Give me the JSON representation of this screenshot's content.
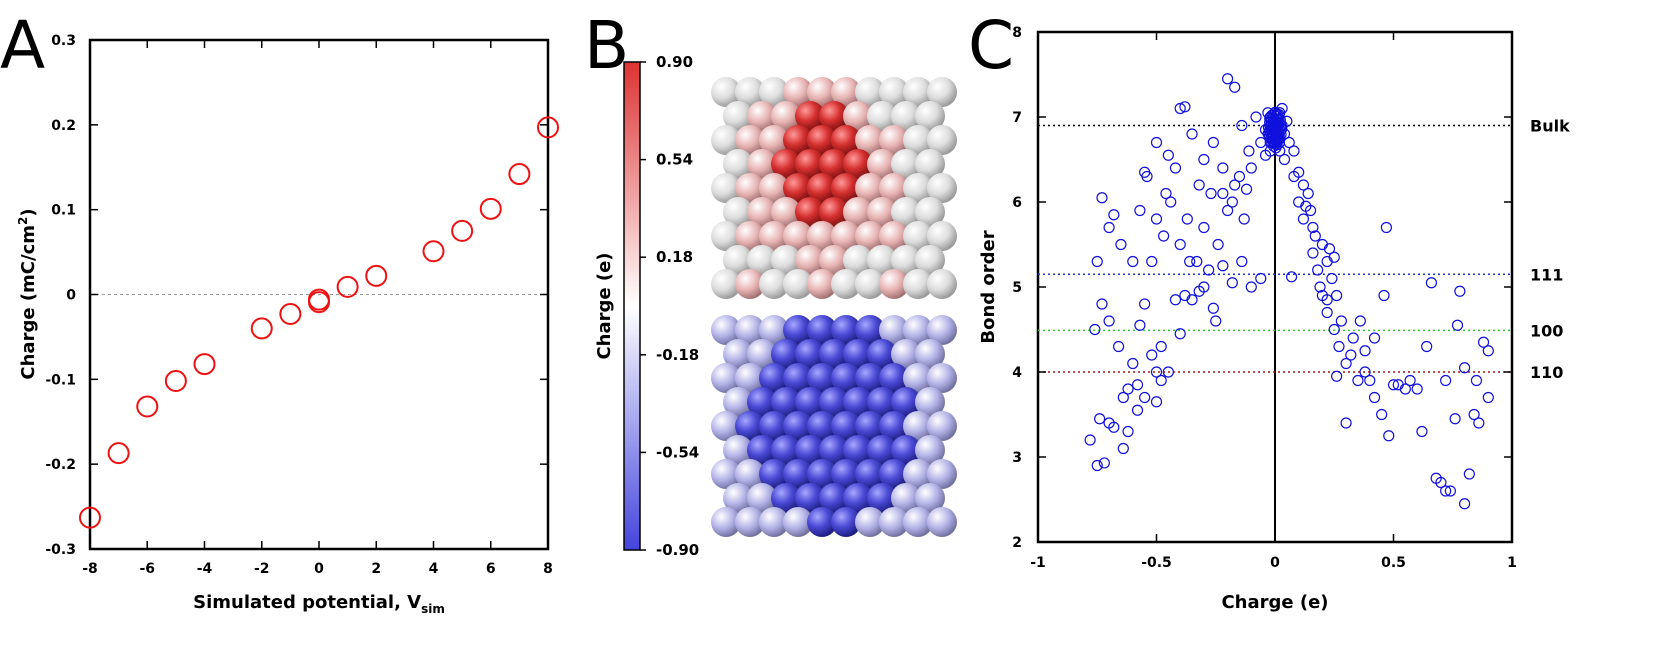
{
  "chart_data": [
    {
      "panel": "A",
      "type": "scatter",
      "xlabel": "Simulated potential, V",
      "xlabel_sub": "sim",
      "ylabel": "Charge (mC/cm",
      "ylabel_sup": "2",
      "ylabel_end": ")",
      "xlim": [
        -8,
        8
      ],
      "ylim": [
        -0.3,
        0.3
      ],
      "xticks": [
        "-8",
        "-6",
        "-4",
        "-2",
        "0",
        "2",
        "4",
        "6",
        "8"
      ],
      "yticks": [
        "-0.3",
        "-0.2",
        "-0.1",
        "0",
        "0.1",
        "0.2",
        "0.3"
      ],
      "marker_color": "#ee1111",
      "zero_line": true,
      "points": [
        {
          "x": -8,
          "y": -0.263
        },
        {
          "x": -7,
          "y": -0.187
        },
        {
          "x": -6,
          "y": -0.132
        },
        {
          "x": -5,
          "y": -0.102
        },
        {
          "x": -4,
          "y": -0.082
        },
        {
          "x": -2,
          "y": -0.04
        },
        {
          "x": -1,
          "y": -0.023
        },
        {
          "x": 0,
          "y": -0.009
        },
        {
          "x": 0,
          "y": -0.006
        },
        {
          "x": 1,
          "y": 0.009
        },
        {
          "x": 2,
          "y": 0.022
        },
        {
          "x": 4,
          "y": 0.051
        },
        {
          "x": 5,
          "y": 0.075
        },
        {
          "x": 6,
          "y": 0.101
        },
        {
          "x": 7,
          "y": 0.142
        },
        {
          "x": 8,
          "y": 0.197
        }
      ]
    },
    {
      "panel": "B",
      "type": "heatmap",
      "colorbar_label": "Charge (e)",
      "colorbar_range": [
        -0.9,
        0.9
      ],
      "colorbar_ticks": [
        "0.90",
        "0.54",
        "0.18",
        "-0.18",
        "-0.54",
        "-0.90"
      ],
      "colormap": [
        "#4444dd",
        "#ffffff",
        "#dd3333"
      ]
    },
    {
      "panel": "C",
      "type": "scatter",
      "xlabel": "Charge (e)",
      "ylabel": "Bond order",
      "xlim": [
        -1,
        1
      ],
      "ylim": [
        2,
        8
      ],
      "xticks": [
        "-1",
        "-0.5",
        "0",
        "0.5",
        "1"
      ],
      "yticks": [
        "2",
        "3",
        "4",
        "5",
        "6",
        "7",
        "8"
      ],
      "marker_color": "#1111dd",
      "reference_lines": [
        {
          "label": "Bulk",
          "y": 6.9,
          "color": "#000000"
        },
        {
          "label": "111",
          "y": 5.15,
          "color": "#2233cc"
        },
        {
          "label": "100",
          "y": 4.49,
          "color": "#33cc33"
        },
        {
          "label": "110",
          "y": 4.0,
          "color": "#aa1111"
        }
      ],
      "points": [
        {
          "x": -0.78,
          "y": 3.2
        },
        {
          "x": -0.75,
          "y": 2.9
        },
        {
          "x": -0.72,
          "y": 2.93
        },
        {
          "x": -0.74,
          "y": 3.45
        },
        {
          "x": -0.7,
          "y": 3.4
        },
        {
          "x": -0.68,
          "y": 3.35
        },
        {
          "x": -0.64,
          "y": 3.1
        },
        {
          "x": -0.62,
          "y": 3.3
        },
        {
          "x": -0.58,
          "y": 3.55
        },
        {
          "x": -0.55,
          "y": 3.7
        },
        {
          "x": -0.5,
          "y": 3.65
        },
        {
          "x": -0.48,
          "y": 3.9
        },
        {
          "x": -0.76,
          "y": 4.5
        },
        {
          "x": -0.73,
          "y": 4.8
        },
        {
          "x": -0.7,
          "y": 4.6
        },
        {
          "x": -0.66,
          "y": 4.3
        },
        {
          "x": -0.62,
          "y": 3.8
        },
        {
          "x": -0.6,
          "y": 4.1
        },
        {
          "x": -0.57,
          "y": 4.55
        },
        {
          "x": -0.52,
          "y": 4.2
        },
        {
          "x": -0.48,
          "y": 4.3
        },
        {
          "x": -0.45,
          "y": 4.0
        },
        {
          "x": -0.42,
          "y": 4.85
        },
        {
          "x": -0.38,
          "y": 4.9
        },
        {
          "x": -0.35,
          "y": 4.85
        },
        {
          "x": -0.3,
          "y": 5.0
        },
        {
          "x": -0.28,
          "y": 5.2
        },
        {
          "x": -0.25,
          "y": 4.6
        },
        {
          "x": -0.22,
          "y": 5.25
        },
        {
          "x": -0.18,
          "y": 5.05
        },
        {
          "x": -0.14,
          "y": 5.3
        },
        {
          "x": -0.1,
          "y": 5.0
        },
        {
          "x": -0.75,
          "y": 5.3
        },
        {
          "x": -0.7,
          "y": 5.7
        },
        {
          "x": -0.68,
          "y": 5.85
        },
        {
          "x": -0.65,
          "y": 5.5
        },
        {
          "x": -0.6,
          "y": 5.3
        },
        {
          "x": -0.57,
          "y": 5.9
        },
        {
          "x": -0.54,
          "y": 6.3
        },
        {
          "x": -0.5,
          "y": 5.8
        },
        {
          "x": -0.47,
          "y": 5.6
        },
        {
          "x": -0.44,
          "y": 6.0
        },
        {
          "x": -0.4,
          "y": 5.5
        },
        {
          "x": -0.37,
          "y": 5.8
        },
        {
          "x": -0.33,
          "y": 5.3
        },
        {
          "x": -0.3,
          "y": 5.7
        },
        {
          "x": -0.27,
          "y": 6.1
        },
        {
          "x": -0.24,
          "y": 5.5
        },
        {
          "x": -0.2,
          "y": 5.9
        },
        {
          "x": -0.17,
          "y": 6.2
        },
        {
          "x": -0.13,
          "y": 5.8
        },
        {
          "x": -0.1,
          "y": 6.4
        },
        {
          "x": -0.73,
          "y": 6.05
        },
        {
          "x": -0.55,
          "y": 6.35
        },
        {
          "x": -0.5,
          "y": 6.7
        },
        {
          "x": -0.45,
          "y": 6.55
        },
        {
          "x": -0.4,
          "y": 7.1
        },
        {
          "x": -0.38,
          "y": 7.12
        },
        {
          "x": -0.35,
          "y": 6.8
        },
        {
          "x": -0.3,
          "y": 6.5
        },
        {
          "x": -0.26,
          "y": 6.7
        },
        {
          "x": -0.22,
          "y": 6.4
        },
        {
          "x": -0.2,
          "y": 7.45
        },
        {
          "x": -0.17,
          "y": 7.35
        },
        {
          "x": -0.14,
          "y": 6.9
        },
        {
          "x": -0.11,
          "y": 6.6
        },
        {
          "x": -0.08,
          "y": 7.0
        },
        {
          "x": -0.06,
          "y": 6.7
        },
        {
          "x": -0.04,
          "y": 6.85
        },
        {
          "x": -0.02,
          "y": 7.0
        },
        {
          "x": -0.01,
          "y": 6.8
        },
        {
          "x": 0.0,
          "y": 6.95
        },
        {
          "x": 0.01,
          "y": 6.75
        },
        {
          "x": 0.02,
          "y": 7.05
        },
        {
          "x": 0.03,
          "y": 6.9
        },
        {
          "x": 0.04,
          "y": 6.8
        },
        {
          "x": 0.05,
          "y": 6.95
        },
        {
          "x": 0.06,
          "y": 6.7
        },
        {
          "x": 0.08,
          "y": 6.6
        },
        {
          "x": 0.1,
          "y": 6.35
        },
        {
          "x": 0.12,
          "y": 6.2
        },
        {
          "x": 0.14,
          "y": 6.1
        },
        {
          "x": 0.08,
          "y": 6.3
        },
        {
          "x": 0.1,
          "y": 6.0
        },
        {
          "x": 0.12,
          "y": 5.8
        },
        {
          "x": 0.15,
          "y": 5.9
        },
        {
          "x": 0.17,
          "y": 5.6
        },
        {
          "x": 0.2,
          "y": 5.5
        },
        {
          "x": 0.22,
          "y": 5.3
        },
        {
          "x": 0.24,
          "y": 5.1
        },
        {
          "x": 0.18,
          "y": 5.2
        },
        {
          "x": 0.2,
          "y": 4.9
        },
        {
          "x": 0.22,
          "y": 4.7
        },
        {
          "x": 0.25,
          "y": 4.5
        },
        {
          "x": 0.27,
          "y": 4.3
        },
        {
          "x": 0.3,
          "y": 4.1
        },
        {
          "x": 0.22,
          "y": 4.85
        },
        {
          "x": 0.25,
          "y": 5.35
        },
        {
          "x": 0.16,
          "y": 5.7
        },
        {
          "x": 0.13,
          "y": 5.95
        },
        {
          "x": -0.06,
          "y": 5.1
        },
        {
          "x": 0.07,
          "y": 5.12
        },
        {
          "x": 0.28,
          "y": 4.6
        },
        {
          "x": 0.32,
          "y": 4.2
        },
        {
          "x": 0.35,
          "y": 3.9
        },
        {
          "x": 0.38,
          "y": 4.25
        },
        {
          "x": 0.42,
          "y": 3.7
        },
        {
          "x": 0.45,
          "y": 3.5
        },
        {
          "x": 0.5,
          "y": 3.85
        },
        {
          "x": 0.48,
          "y": 3.25
        },
        {
          "x": 0.55,
          "y": 3.8
        },
        {
          "x": 0.42,
          "y": 4.4
        },
        {
          "x": 0.46,
          "y": 4.9
        },
        {
          "x": 0.47,
          "y": 5.7
        },
        {
          "x": 0.3,
          "y": 3.4
        },
        {
          "x": 0.26,
          "y": 3.95
        },
        {
          "x": 0.38,
          "y": 4.0
        },
        {
          "x": 0.6,
          "y": 3.8
        },
        {
          "x": 0.62,
          "y": 3.3
        },
        {
          "x": 0.64,
          "y": 4.3
        },
        {
          "x": 0.66,
          "y": 5.05
        },
        {
          "x": 0.68,
          "y": 2.75
        },
        {
          "x": 0.7,
          "y": 2.7
        },
        {
          "x": 0.74,
          "y": 2.6
        },
        {
          "x": 0.72,
          "y": 3.9
        },
        {
          "x": 0.77,
          "y": 4.55
        },
        {
          "x": 0.78,
          "y": 4.95
        },
        {
          "x": 0.8,
          "y": 2.45
        },
        {
          "x": 0.82,
          "y": 2.8
        },
        {
          "x": 0.84,
          "y": 3.5
        },
        {
          "x": 0.86,
          "y": 3.4
        },
        {
          "x": 0.88,
          "y": 4.35
        },
        {
          "x": 0.9,
          "y": 4.25
        },
        {
          "x": 0.9,
          "y": 3.7
        },
        {
          "x": 0.85,
          "y": 3.9
        },
        {
          "x": 0.8,
          "y": 4.05
        },
        {
          "x": 0.76,
          "y": 3.45
        },
        {
          "x": 0.72,
          "y": 2.6
        },
        {
          "x": -0.02,
          "y": 6.6
        },
        {
          "x": 0.0,
          "y": 6.7
        },
        {
          "x": 0.02,
          "y": 6.6
        },
        {
          "x": -0.04,
          "y": 6.55
        },
        {
          "x": 0.04,
          "y": 6.5
        },
        {
          "x": -0.03,
          "y": 7.05
        },
        {
          "x": 0.03,
          "y": 7.1
        },
        {
          "x": 0.0,
          "y": 7.05
        },
        {
          "x": -0.15,
          "y": 6.3
        },
        {
          "x": -0.12,
          "y": 6.15
        },
        {
          "x": -0.18,
          "y": 6.0
        },
        {
          "x": -0.22,
          "y": 6.1
        },
        {
          "x": -0.32,
          "y": 6.2
        },
        {
          "x": -0.42,
          "y": 6.4
        },
        {
          "x": -0.46,
          "y": 6.1
        },
        {
          "x": -0.52,
          "y": 5.3
        },
        {
          "x": -0.36,
          "y": 5.3
        },
        {
          "x": -0.32,
          "y": 4.95
        },
        {
          "x": -0.26,
          "y": 4.75
        },
        {
          "x": -0.4,
          "y": 4.45
        },
        {
          "x": -0.55,
          "y": 4.8
        },
        {
          "x": -0.64,
          "y": 3.7
        },
        {
          "x": -0.58,
          "y": 3.85
        },
        {
          "x": -0.5,
          "y": 4.0
        },
        {
          "x": 0.16,
          "y": 5.4
        },
        {
          "x": 0.19,
          "y": 5.0
        },
        {
          "x": 0.23,
          "y": 5.45
        },
        {
          "x": 0.26,
          "y": 4.9
        },
        {
          "x": 0.33,
          "y": 4.4
        },
        {
          "x": 0.36,
          "y": 4.6
        },
        {
          "x": 0.4,
          "y": 3.9
        },
        {
          "x": 0.52,
          "y": 3.85
        },
        {
          "x": 0.57,
          "y": 3.9
        }
      ]
    }
  ]
}
